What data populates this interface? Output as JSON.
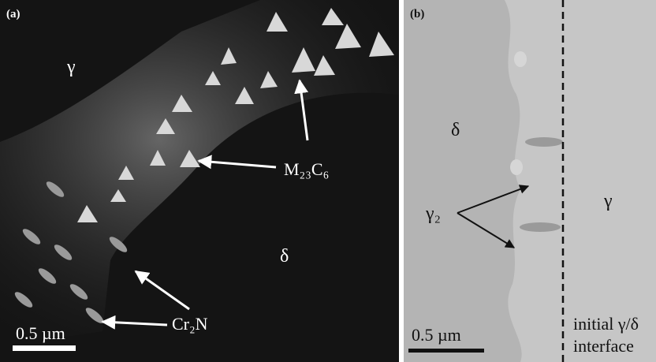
{
  "panels": [
    {
      "label": "(a)",
      "annotations": [
        "γ",
        "M₂₃C₆",
        "δ",
        "Cr₂N"
      ],
      "scale_bar": "0.5 µm"
    },
    {
      "label": "(b)",
      "annotations": [
        "δ",
        "γ₂",
        "γ"
      ],
      "scale_bar": "0.5 µm",
      "interface_label": [
        "initial γ/δ",
        "interface"
      ]
    }
  ]
}
